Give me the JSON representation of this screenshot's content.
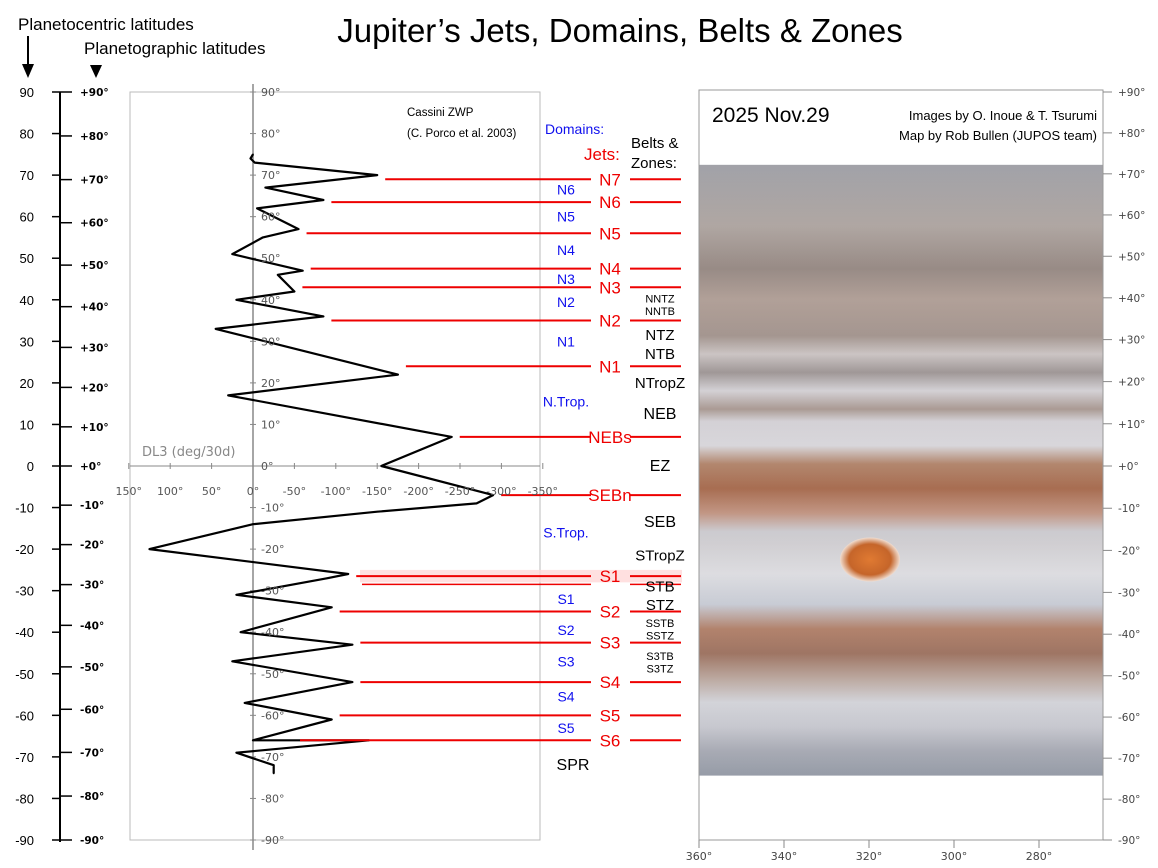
{
  "title": "Jupiter’s Jets, Domains, Belts & Zones",
  "headers": {
    "planetocentric": "Planetocentric latitudes",
    "planetographic": "Planetographic latitudes",
    "domains": "Domains:",
    "jets": "Jets:",
    "belts1": "Belts &",
    "belts2": "Zones:"
  },
  "colors": {
    "jets": "#ee0000",
    "domains": "#1010ee",
    "profile": "#000000",
    "grid_grey": "#999999",
    "grs": "#d3702c",
    "band_orange": "#b8653a",
    "zone_white": "#e8e8ec"
  },
  "axes": {
    "centric_labels": [
      "90",
      "80",
      "70",
      "60",
      "50",
      "40",
      "30",
      "20",
      "10",
      "0",
      "-10",
      "-20",
      "-30",
      "-40",
      "-50",
      "-60",
      "-70",
      "-80",
      "-90"
    ],
    "graphic_labels": [
      "+90°",
      "+80°",
      "+70°",
      "+60°",
      "+50°",
      "+40°",
      "+30°",
      "+20°",
      "+10°",
      "+0°",
      "-10°",
      "-20°",
      "-30°",
      "-40°",
      "-50°",
      "-60°",
      "-70°",
      "-80°",
      "-90°"
    ],
    "chart_lat_labels": [
      "90°",
      "80°",
      "70°",
      "60°",
      "50°",
      "40°",
      "30°",
      "20°",
      "10°",
      "0°",
      "-10°",
      "-20°",
      "-30°",
      "-40°",
      "-50°",
      "-60°",
      "-70°",
      "-80°",
      "-90°"
    ],
    "speed_labels": [
      "150°",
      "100°",
      "50°",
      "0°",
      "-50°",
      "-100°",
      "-150°",
      "-200°",
      "-250°",
      "-300°",
      "-350°"
    ],
    "map_right_labels": [
      "+90°",
      "+80°",
      "+70°",
      "+60°",
      "+50°",
      "+40°",
      "+30°",
      "+20°",
      "+10°",
      "+0°",
      "-10°",
      "-20°",
      "-30°",
      "-40°",
      "-50°",
      "-60°",
      "-70°",
      "-80°",
      "-90°"
    ],
    "longitude_labels": [
      "360°",
      "340°",
      "320°",
      "300°",
      "280°"
    ]
  },
  "chart_data": {
    "type": "line",
    "title": "",
    "source_line1": "Cassini ZWP",
    "source_line2": "(C. Porco et al. 2003)",
    "xlabel": "DL3 (deg/30d)",
    "ylabel": "",
    "xlim": [
      150,
      -350
    ],
    "ylim": [
      -90,
      90
    ],
    "x_ticks": [
      150,
      100,
      50,
      0,
      -50,
      -100,
      -150,
      -200,
      -250,
      -300,
      -350
    ],
    "y_ticks": [
      90,
      80,
      70,
      60,
      50,
      40,
      30,
      20,
      10,
      0,
      -10,
      -20,
      -30,
      -40,
      -50,
      -60,
      -70,
      -80,
      -90
    ],
    "profile": [
      [
        0,
        75
      ],
      [
        3,
        74
      ],
      [
        -2,
        73
      ],
      [
        -150,
        70
      ],
      [
        -15,
        67
      ],
      [
        -85,
        64
      ],
      [
        -5,
        62
      ],
      [
        -55,
        57
      ],
      [
        -12,
        55
      ],
      [
        25,
        51
      ],
      [
        -60,
        47
      ],
      [
        -30,
        46
      ],
      [
        -50,
        42
      ],
      [
        20,
        40
      ],
      [
        -85,
        36
      ],
      [
        45,
        33
      ],
      [
        -175,
        22
      ],
      [
        30,
        17
      ],
      [
        -240,
        7
      ],
      [
        -155,
        0
      ],
      [
        -290,
        -7
      ],
      [
        -270,
        -9
      ],
      [
        -150,
        -11
      ],
      [
        0,
        -14
      ],
      [
        125,
        -20
      ],
      [
        -115,
        -26
      ],
      [
        -90,
        -27
      ],
      [
        20,
        -31
      ],
      [
        -95,
        -34
      ],
      [
        15,
        -40
      ],
      [
        -120,
        -43
      ],
      [
        25,
        -47
      ],
      [
        -120,
        -52
      ],
      [
        10,
        -57
      ],
      [
        -95,
        -61
      ],
      [
        0,
        -66
      ],
      [
        -140,
        -66
      ],
      [
        20,
        -69
      ],
      [
        -25,
        -72
      ],
      [
        -25,
        -74
      ]
    ]
  },
  "jets": [
    {
      "label": "N7",
      "lat": 69
    },
    {
      "label": "N6",
      "lat": 63.5
    },
    {
      "label": "N5",
      "lat": 56
    },
    {
      "label": "N4",
      "lat": 47.5
    },
    {
      "label": "N3",
      "lat": 43
    },
    {
      "label": "N2",
      "lat": 35
    },
    {
      "label": "N1",
      "lat": 24
    },
    {
      "label": "NEBs",
      "lat": 7
    },
    {
      "label": "SEBn",
      "lat": -7
    },
    {
      "label": "S1",
      "lat": -26.5
    },
    {
      "label": "S2",
      "lat": -35
    },
    {
      "label": "S3",
      "lat": -42.5
    },
    {
      "label": "S4",
      "lat": -52
    },
    {
      "label": "S5",
      "lat": -60
    },
    {
      "label": "S6",
      "lat": -66
    }
  ],
  "domains": [
    {
      "label": "N6",
      "lat": 66.5
    },
    {
      "label": "N5",
      "lat": 60
    },
    {
      "label": "N4",
      "lat": 52
    },
    {
      "label": "N3",
      "lat": 45
    },
    {
      "label": "N2",
      "lat": 39.5
    },
    {
      "label": "N1",
      "lat": 30
    },
    {
      "label": "N.Trop.",
      "lat": 15.5
    },
    {
      "label": "S.Trop.",
      "lat": -16
    },
    {
      "label": "S1",
      "lat": -32
    },
    {
      "label": "S2",
      "lat": -39.5
    },
    {
      "label": "S3",
      "lat": -47
    },
    {
      "label": "S4",
      "lat": -55.5
    },
    {
      "label": "S5",
      "lat": -63
    }
  ],
  "belts": [
    {
      "label": "NNTZ",
      "lat": 40.5,
      "size": "s"
    },
    {
      "label": "NNTB",
      "lat": 37.5,
      "size": "s"
    },
    {
      "label": "NTZ",
      "lat": 31.5,
      "size": "m"
    },
    {
      "label": "NTB",
      "lat": 27,
      "size": "m"
    },
    {
      "label": "NTropZ",
      "lat": 20,
      "size": "m"
    },
    {
      "label": "NEB",
      "lat": 12.5,
      "size": "l"
    },
    {
      "label": "EZ",
      "lat": 0,
      "size": "l"
    },
    {
      "label": "SEB",
      "lat": -13.5,
      "size": "l"
    },
    {
      "label": "STropZ",
      "lat": -21.5,
      "size": "m"
    },
    {
      "label": "STB",
      "lat": -29,
      "size": "m"
    },
    {
      "label": "STZ",
      "lat": -33.5,
      "size": "m"
    },
    {
      "label": "SSTB",
      "lat": -37.5,
      "size": "s"
    },
    {
      "label": "SSTZ",
      "lat": -40.5,
      "size": "s"
    },
    {
      "label": "S3TB",
      "lat": -45.5,
      "size": "s"
    },
    {
      "label": "S3TZ",
      "lat": -48.5,
      "size": "s"
    },
    {
      "label": "SPR",
      "lat": -72,
      "size": "l"
    }
  ],
  "map": {
    "date": "2025 Nov.29",
    "credit1": "Images by O. Inoue & T. Tsurumi",
    "credit2": "Map by Rob Bullen (JUPOS team)"
  }
}
